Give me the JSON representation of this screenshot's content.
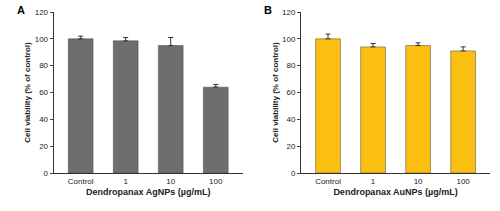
{
  "chart_data": [
    {
      "type": "bar",
      "title": "A",
      "categories": [
        "Control",
        "1",
        "10",
        "100"
      ],
      "values": [
        100,
        98.5,
        95,
        64
      ],
      "errors": [
        2,
        2.5,
        6,
        2
      ],
      "color": "#6e6e6e",
      "x_label": "Dendropanax AgNPs (µg/mL)",
      "y_label": "Cell viability (% of control)",
      "ylim": [
        0,
        120
      ],
      "yticks": [
        0,
        20,
        40,
        60,
        80,
        100,
        120
      ],
      "grid": false
    },
    {
      "type": "bar",
      "title": "B",
      "categories": [
        "Control",
        "1",
        "10",
        "100"
      ],
      "values": [
        100,
        94,
        95,
        91
      ],
      "errors": [
        3.5,
        2.5,
        2,
        3
      ],
      "color": "#fbbf12",
      "x_label": "Dendropanax AuNPs (µg/mL)",
      "y_label": "Cell viability (% of control)",
      "ylim": [
        0,
        120
      ],
      "yticks": [
        0,
        20,
        40,
        60,
        80,
        100,
        120
      ],
      "grid": false
    }
  ]
}
